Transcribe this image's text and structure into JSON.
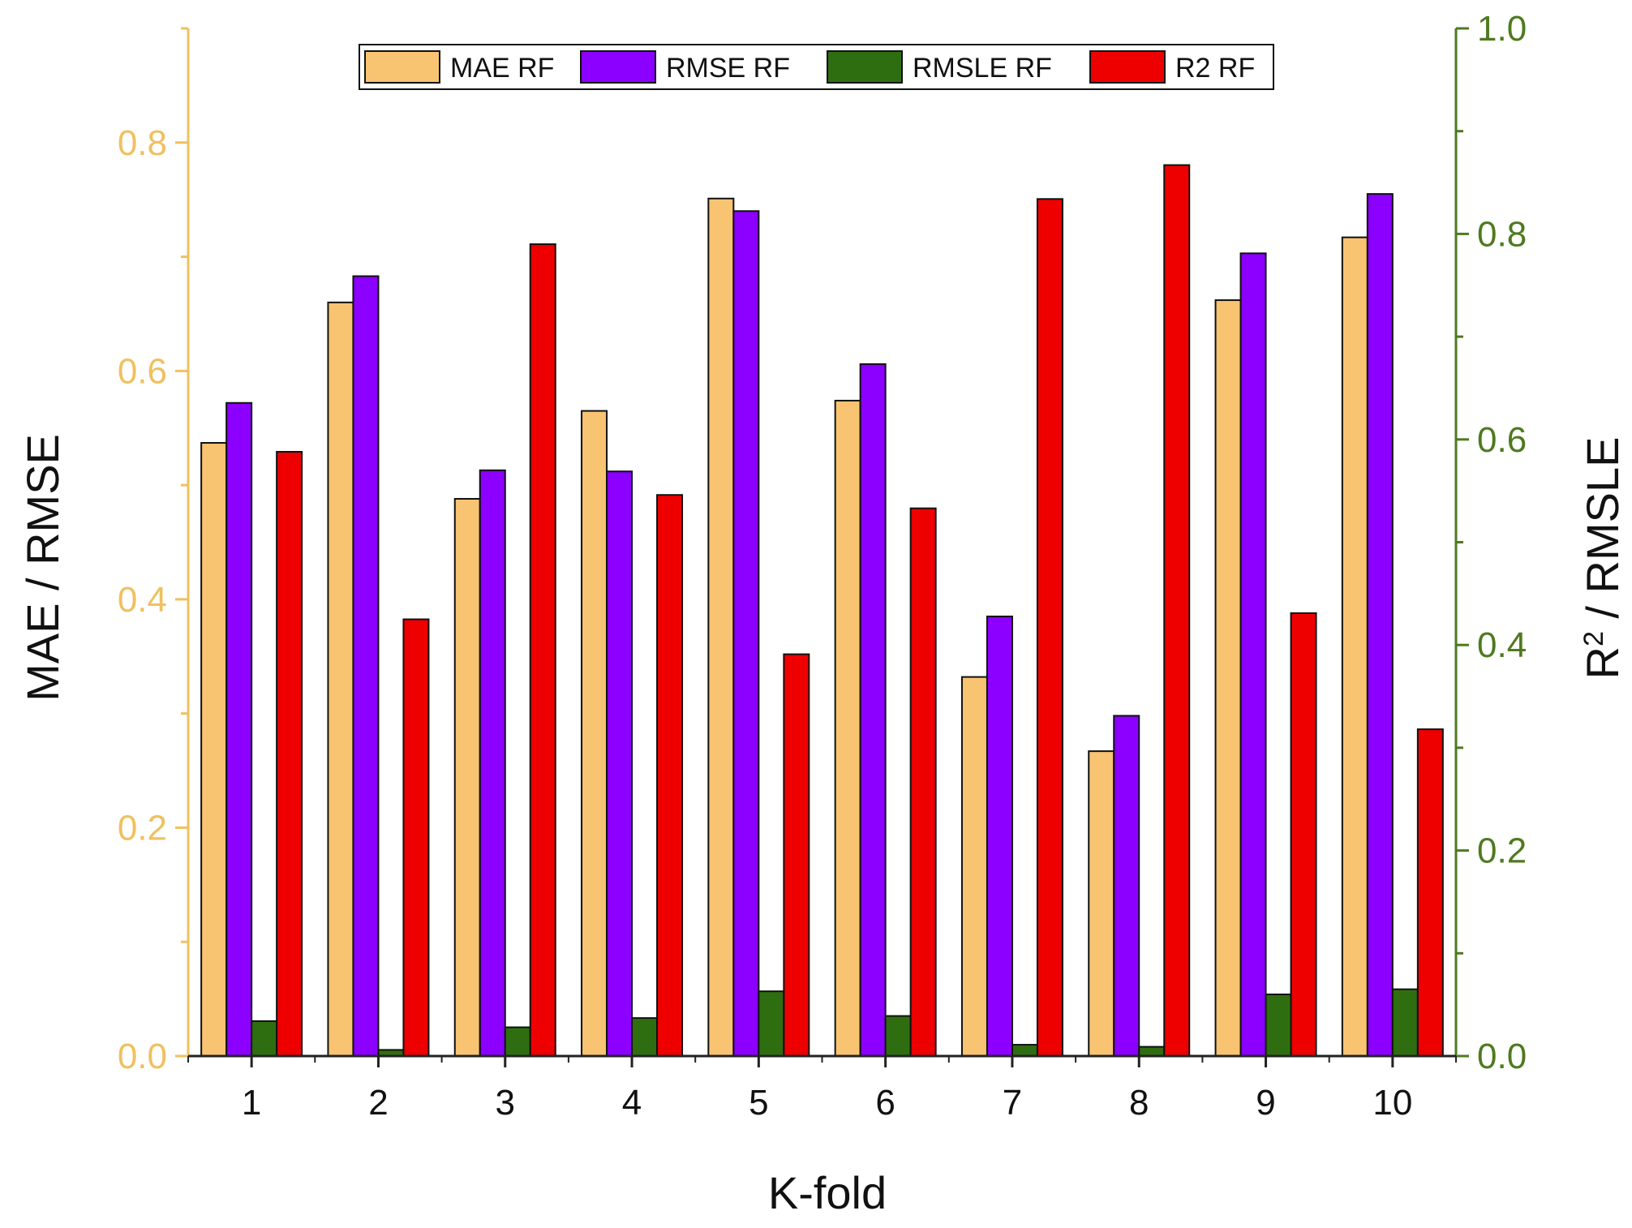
{
  "chart_data": {
    "type": "bar",
    "xlabel": "K-fold",
    "ylabel_left": "MAE / RMSE",
    "ylabel_right_base": "R",
    "ylabel_right_sup": "2",
    "ylabel_right_rest": " / RMSLE",
    "categories": [
      "1",
      "2",
      "3",
      "4",
      "5",
      "6",
      "7",
      "8",
      "9",
      "10"
    ],
    "ylim_left": [
      0,
      0.9
    ],
    "ylim_right": [
      0,
      1.0
    ],
    "yticks_left": [
      "0.0",
      "0.2",
      "0.4",
      "0.6",
      "0.8"
    ],
    "yticks_right": [
      "0.0",
      "0.2",
      "0.4",
      "0.6",
      "0.8",
      "1.0"
    ],
    "series": [
      {
        "name": "MAE RF",
        "axis": "left",
        "color": "#f8c471",
        "values": [
          0.537,
          0.66,
          0.488,
          0.565,
          0.751,
          0.574,
          0.332,
          0.267,
          0.662,
          0.717
        ]
      },
      {
        "name": "RMSE RF",
        "axis": "left",
        "color": "#8b00ff",
        "values": [
          0.572,
          0.683,
          0.513,
          0.512,
          0.74,
          0.606,
          0.385,
          0.298,
          0.703,
          0.755
        ]
      },
      {
        "name": "RMSLE RF",
        "axis": "right",
        "color": "#2f6e10",
        "values": [
          0.034,
          0.006,
          0.028,
          0.037,
          0.063,
          0.039,
          0.011,
          0.009,
          0.06,
          0.065
        ]
      },
      {
        "name": "R2 RF",
        "axis": "right",
        "color": "#ee0000",
        "values": [
          0.588,
          0.425,
          0.79,
          0.546,
          0.391,
          0.533,
          0.834,
          0.867,
          0.431,
          0.318
        ]
      }
    ]
  }
}
